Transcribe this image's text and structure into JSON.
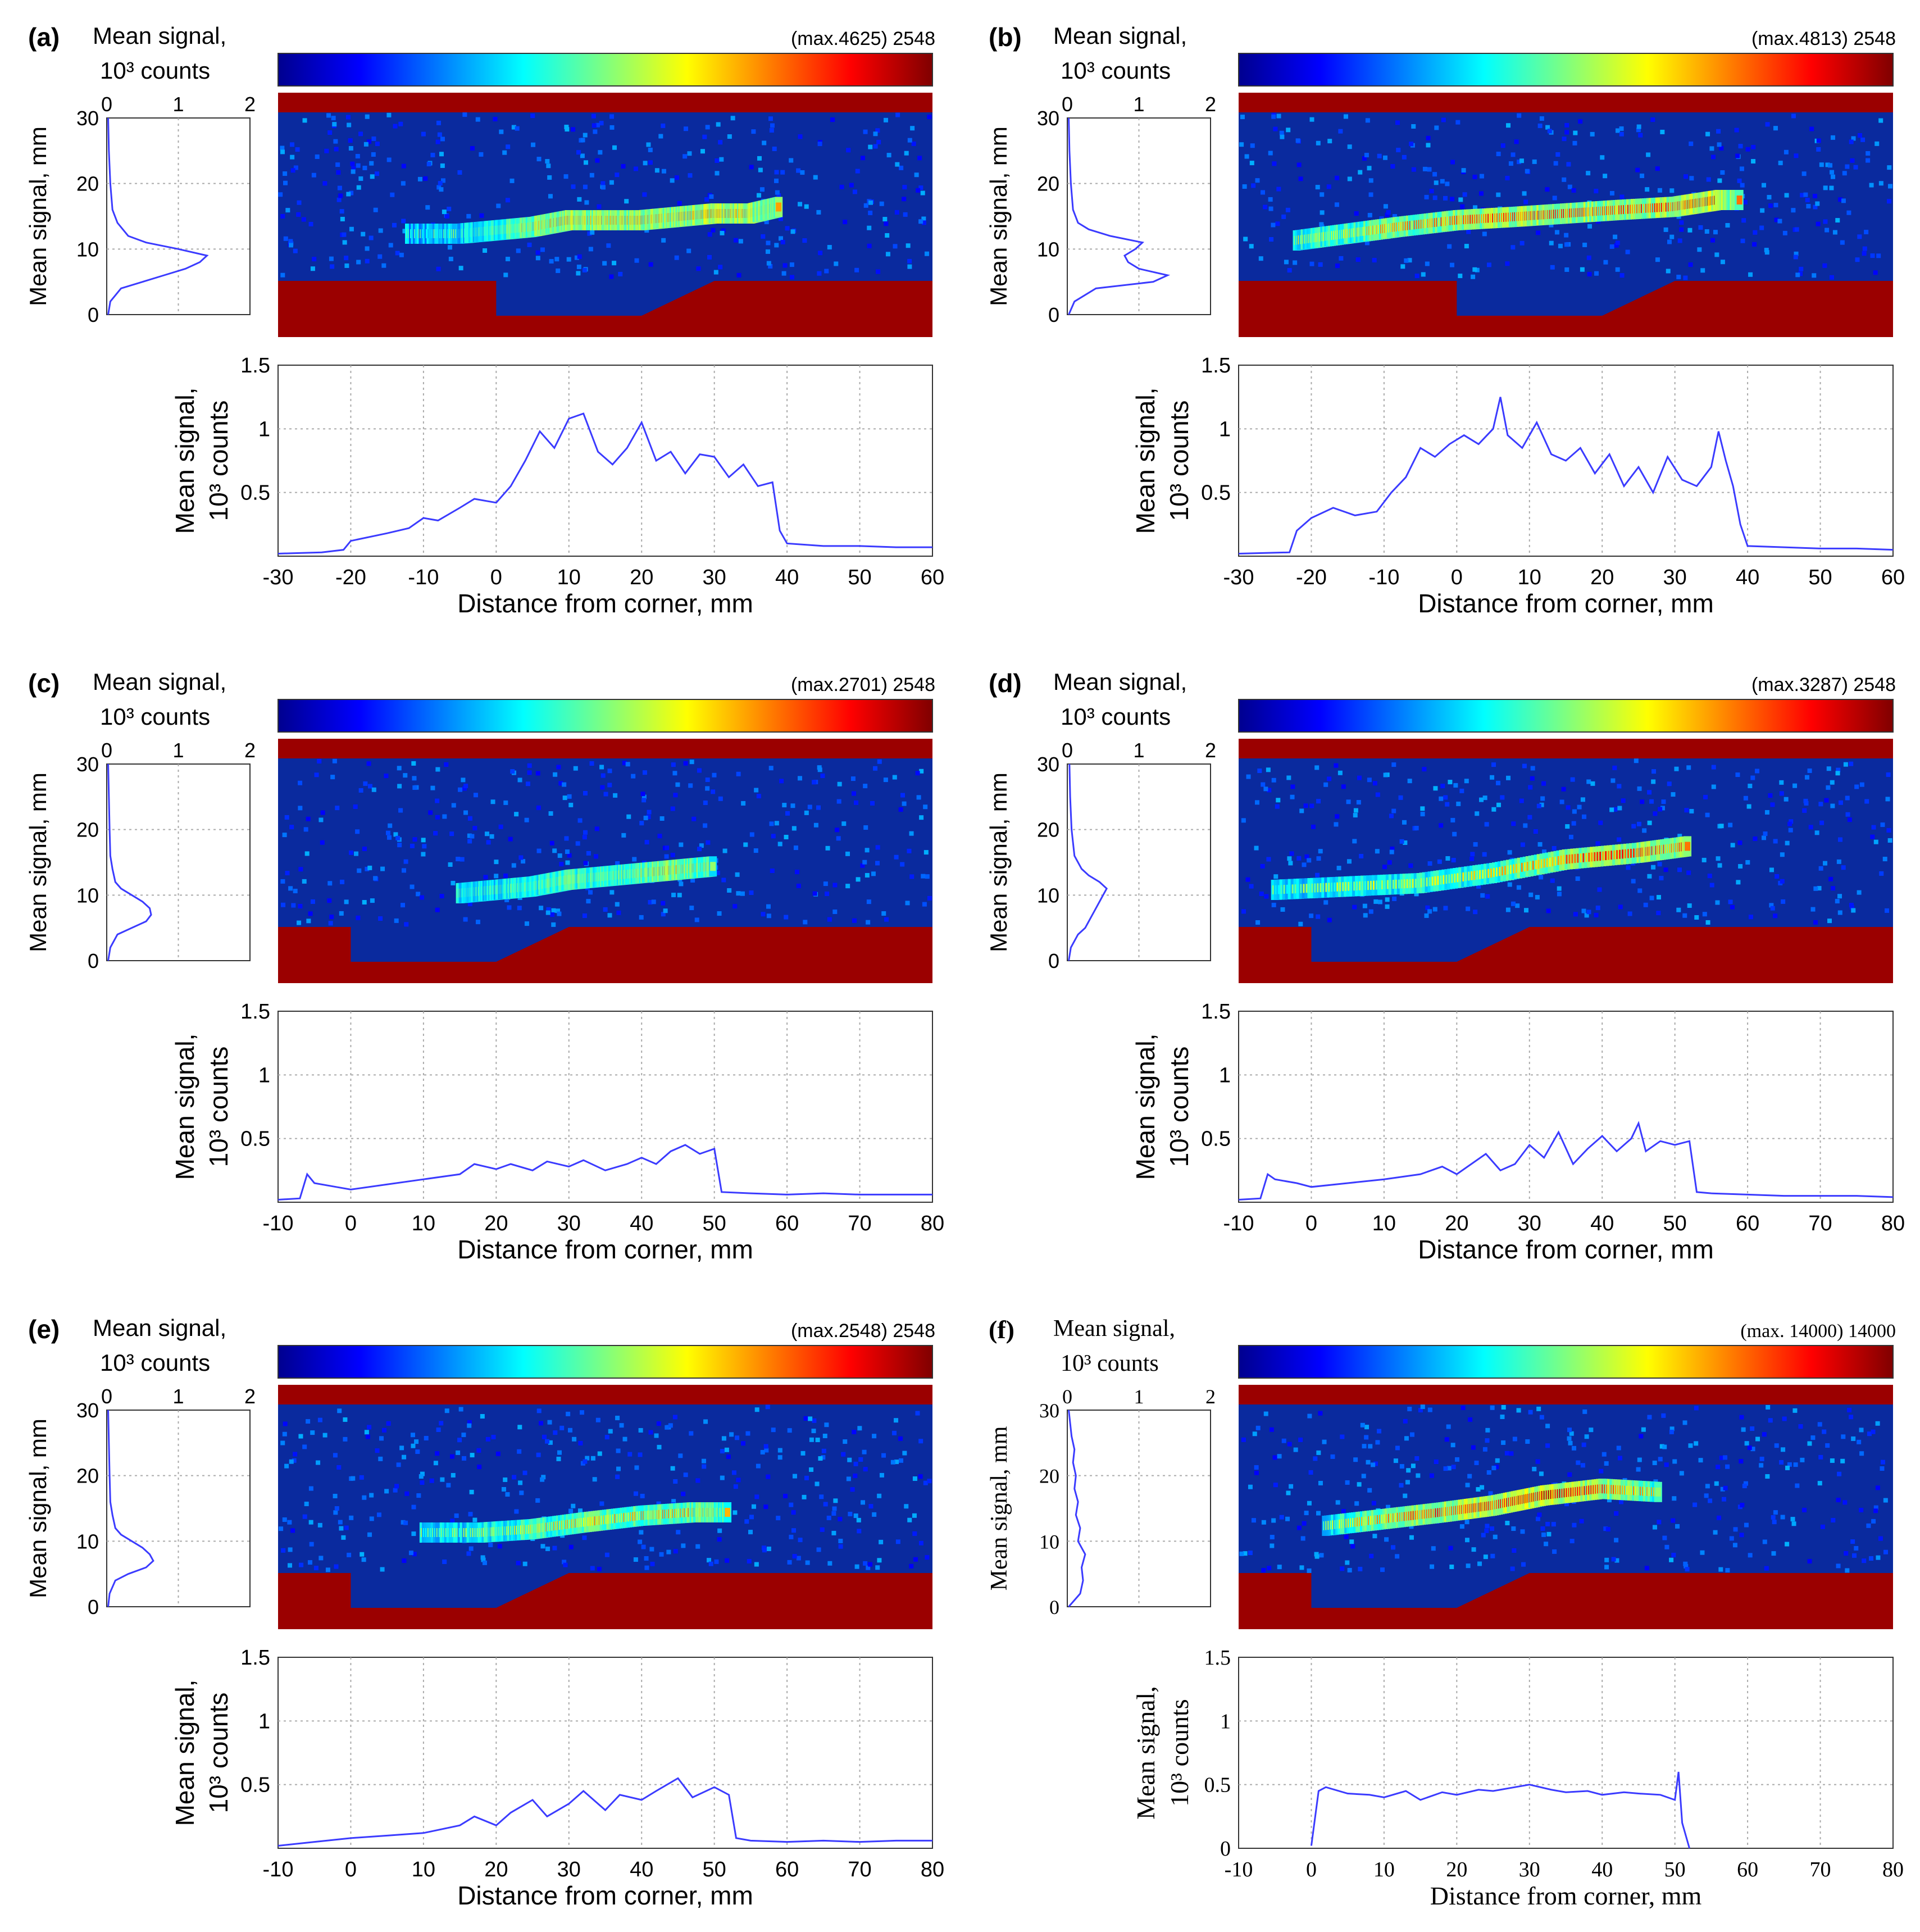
{
  "figure": {
    "colormap": [
      "#00008f",
      "#0000ff",
      "#007fff",
      "#00ffff",
      "#7fff7f",
      "#ffff00",
      "#ff7f00",
      "#ff0000",
      "#800000"
    ],
    "bottom_xlabel": "Distance from corner, mm",
    "bottom_ylabel_line1": "Mean signal,",
    "bottom_ylabel_line2": "10³ counts",
    "side_ylabel": "Mean signal, mm",
    "colorbar_label_line1": "Mean signal,",
    "colorbar_label_line2": "10³ counts",
    "wall_color": "#9b0000",
    "field_color": "#0a2a9e",
    "line_color": "#3b3bff"
  },
  "chart_data": [
    {
      "type": "line",
      "panel": "(a)",
      "colorbar_text": "(max.4625)  2548",
      "xlim": [
        -30,
        60
      ],
      "xticks": [
        "-30",
        "-20",
        "-10",
        "0",
        "10",
        "20",
        "30",
        "40",
        "50",
        "60"
      ],
      "ylim": [
        0,
        1.5
      ],
      "yticks": [
        "0.5",
        "1",
        "1.5"
      ],
      "x": [
        -30,
        -24,
        -21,
        -20,
        -15,
        -12,
        -10,
        -8,
        -5,
        -3,
        0,
        2,
        4,
        6,
        8,
        10,
        12,
        14,
        16,
        18,
        20,
        22,
        24,
        26,
        28,
        30,
        32,
        34,
        36,
        38,
        39,
        40,
        45,
        50,
        55,
        60
      ],
      "y": [
        0.02,
        0.03,
        0.05,
        0.12,
        0.18,
        0.22,
        0.3,
        0.28,
        0.38,
        0.45,
        0.42,
        0.55,
        0.75,
        0.98,
        0.85,
        1.08,
        1.12,
        0.82,
        0.72,
        0.85,
        1.05,
        0.75,
        0.82,
        0.65,
        0.8,
        0.78,
        0.62,
        0.72,
        0.55,
        0.58,
        0.2,
        0.1,
        0.08,
        0.08,
        0.07,
        0.07
      ],
      "side_profile": {
        "xlim": [
          0,
          2
        ],
        "xticks": [
          "0",
          "1",
          "2"
        ],
        "ylim": [
          0,
          30
        ],
        "yticks": [
          "0",
          "10",
          "20",
          "30"
        ],
        "y": [
          0,
          2,
          4,
          5,
          6,
          7,
          8,
          9,
          10,
          11,
          12,
          14,
          16,
          20,
          25,
          30
        ],
        "x": [
          0.02,
          0.05,
          0.2,
          0.5,
          0.8,
          1.1,
          1.3,
          1.4,
          1.0,
          0.55,
          0.3,
          0.15,
          0.08,
          0.05,
          0.03,
          0.02
        ]
      },
      "heatmap": {
        "streak_x": [
          -12,
          -5,
          0,
          5,
          10,
          15,
          20,
          25,
          30,
          35,
          39
        ],
        "streak_y": [
          7,
          7,
          7.5,
          8,
          9,
          9,
          9,
          9.5,
          10,
          10,
          11
        ],
        "intensity": [
          0.4,
          0.45,
          0.55,
          0.7,
          0.8,
          0.75,
          0.8,
          0.75,
          0.85,
          0.8,
          0.7
        ]
      }
    },
    {
      "type": "line",
      "panel": "(b)",
      "colorbar_text": "(max.4813)  2548",
      "xlim": [
        -30,
        60
      ],
      "xticks": [
        "-30",
        "-20",
        "-10",
        "0",
        "10",
        "20",
        "30",
        "40",
        "50",
        "60"
      ],
      "ylim": [
        0,
        1.5
      ],
      "yticks": [
        "0.5",
        "1",
        "1.5"
      ],
      "x": [
        -30,
        -23,
        -22,
        -20,
        -17,
        -14,
        -11,
        -9,
        -7,
        -5,
        -3,
        -1,
        1,
        3,
        5,
        6,
        7,
        9,
        11,
        13,
        15,
        17,
        19,
        21,
        23,
        25,
        27,
        29,
        31,
        33,
        35,
        36,
        37,
        38,
        39,
        40,
        45,
        50,
        55,
        60
      ],
      "y": [
        0.02,
        0.03,
        0.2,
        0.3,
        0.38,
        0.32,
        0.35,
        0.5,
        0.62,
        0.85,
        0.78,
        0.88,
        0.95,
        0.88,
        1.0,
        1.25,
        0.95,
        0.85,
        1.05,
        0.8,
        0.75,
        0.85,
        0.65,
        0.8,
        0.55,
        0.7,
        0.5,
        0.78,
        0.6,
        0.55,
        0.7,
        0.98,
        0.75,
        0.55,
        0.25,
        0.08,
        0.07,
        0.06,
        0.06,
        0.05
      ],
      "side_profile": {
        "xlim": [
          0,
          2
        ],
        "xticks": [
          "0",
          "1",
          "2"
        ],
        "ylim": [
          0,
          30
        ],
        "yticks": [
          "0",
          "10",
          "20",
          "30"
        ],
        "y": [
          0,
          2,
          4,
          5,
          6,
          7,
          8,
          9,
          10,
          11,
          12,
          13,
          14,
          16,
          20,
          25,
          30
        ],
        "x": [
          0.02,
          0.1,
          0.4,
          1.2,
          1.4,
          1.0,
          0.85,
          0.8,
          0.95,
          1.05,
          0.6,
          0.3,
          0.15,
          0.08,
          0.05,
          0.03,
          0.02
        ]
      },
      "heatmap": {
        "streak_x": [
          -22,
          -15,
          -8,
          0,
          8,
          15,
          22,
          30,
          36,
          39
        ],
        "streak_y": [
          6,
          7,
          8,
          9,
          9.5,
          10,
          10.5,
          11,
          12,
          12
        ],
        "intensity": [
          0.55,
          0.6,
          0.7,
          0.75,
          0.8,
          0.8,
          0.75,
          0.8,
          0.9,
          0.7
        ]
      }
    },
    {
      "type": "line",
      "panel": "(c)",
      "colorbar_text": "(max.2701)  2548",
      "xlim": [
        -10,
        80
      ],
      "xticks": [
        "-10",
        "0",
        "10",
        "20",
        "30",
        "40",
        "50",
        "60",
        "70",
        "80"
      ],
      "ylim": [
        0,
        1.5
      ],
      "yticks": [
        "0.5",
        "1",
        "1.5"
      ],
      "x": [
        -10,
        -7,
        -6,
        -5,
        -2,
        0,
        5,
        10,
        15,
        17,
        20,
        22,
        25,
        27,
        30,
        32,
        35,
        38,
        40,
        42,
        44,
        46,
        48,
        50,
        51,
        55,
        60,
        65,
        70,
        75,
        80
      ],
      "y": [
        0.02,
        0.03,
        0.22,
        0.15,
        0.12,
        0.1,
        0.14,
        0.18,
        0.22,
        0.3,
        0.26,
        0.3,
        0.25,
        0.32,
        0.28,
        0.33,
        0.25,
        0.3,
        0.35,
        0.3,
        0.4,
        0.45,
        0.38,
        0.42,
        0.08,
        0.07,
        0.06,
        0.07,
        0.06,
        0.06,
        0.06
      ],
      "side_profile": {
        "xlim": [
          0,
          2
        ],
        "xticks": [
          "0",
          "1",
          "2"
        ],
        "ylim": [
          0,
          30
        ],
        "yticks": [
          "0",
          "10",
          "20",
          "30"
        ],
        "y": [
          0,
          2,
          4,
          5,
          6,
          7,
          8,
          9,
          10,
          11,
          12,
          14,
          16,
          20,
          25,
          30
        ],
        "x": [
          0.02,
          0.05,
          0.15,
          0.35,
          0.55,
          0.62,
          0.6,
          0.5,
          0.35,
          0.2,
          0.12,
          0.08,
          0.05,
          0.04,
          0.03,
          0.02
        ]
      },
      "heatmap": {
        "streak_x": [
          15,
          20,
          25,
          30,
          35,
          40,
          45,
          50
        ],
        "streak_y": [
          5,
          5.5,
          6,
          7,
          7.5,
          8,
          8.5,
          9
        ],
        "intensity": [
          0.5,
          0.5,
          0.55,
          0.6,
          0.6,
          0.65,
          0.75,
          0.6
        ]
      }
    },
    {
      "type": "line",
      "panel": "(d)",
      "colorbar_text": "(max.3287)  2548",
      "xlim": [
        -10,
        80
      ],
      "xticks": [
        "-10",
        "0",
        "10",
        "20",
        "30",
        "40",
        "50",
        "60",
        "70",
        "80"
      ],
      "ylim": [
        0,
        1.5
      ],
      "yticks": [
        "0.5",
        "1",
        "1.5"
      ],
      "x": [
        -10,
        -7,
        -6,
        -5,
        -2,
        0,
        5,
        10,
        15,
        18,
        20,
        24,
        26,
        28,
        30,
        32,
        34,
        36,
        38,
        40,
        42,
        44,
        45,
        46,
        48,
        50,
        52,
        53,
        55,
        60,
        65,
        70,
        75,
        80
      ],
      "y": [
        0.02,
        0.03,
        0.22,
        0.18,
        0.15,
        0.12,
        0.15,
        0.18,
        0.22,
        0.28,
        0.22,
        0.38,
        0.25,
        0.3,
        0.45,
        0.35,
        0.55,
        0.3,
        0.42,
        0.52,
        0.4,
        0.5,
        0.62,
        0.4,
        0.48,
        0.45,
        0.48,
        0.08,
        0.07,
        0.06,
        0.05,
        0.05,
        0.05,
        0.04
      ],
      "side_profile": {
        "xlim": [
          0,
          2
        ],
        "xticks": [
          "0",
          "1",
          "2"
        ],
        "ylim": [
          0,
          30
        ],
        "yticks": [
          "0",
          "10",
          "20",
          "30"
        ],
        "y": [
          0,
          2,
          4,
          5,
          6,
          7,
          8,
          9,
          10,
          11,
          12,
          13,
          14,
          16,
          20,
          25,
          30
        ],
        "x": [
          0.02,
          0.05,
          0.15,
          0.25,
          0.3,
          0.35,
          0.4,
          0.45,
          0.5,
          0.55,
          0.45,
          0.3,
          0.2,
          0.1,
          0.06,
          0.04,
          0.03
        ]
      },
      "heatmap": {
        "streak_x": [
          -5,
          5,
          15,
          25,
          35,
          45,
          52
        ],
        "streak_y": [
          5.5,
          6,
          6.5,
          8,
          10,
          11,
          12
        ],
        "intensity": [
          0.45,
          0.5,
          0.55,
          0.6,
          0.75,
          0.8,
          0.75
        ]
      }
    },
    {
      "type": "line",
      "panel": "(e)",
      "colorbar_text": "(max.2548)   2548",
      "xlim": [
        -10,
        80
      ],
      "xticks": [
        "-10",
        "0",
        "10",
        "20",
        "30",
        "40",
        "50",
        "60",
        "70",
        "80"
      ],
      "ylim": [
        0,
        1.5
      ],
      "yticks": [
        "0.5",
        "1",
        "1.5"
      ],
      "x": [
        -10,
        -5,
        0,
        5,
        10,
        15,
        17,
        20,
        22,
        25,
        27,
        30,
        32,
        35,
        37,
        40,
        42,
        45,
        47,
        50,
        52,
        53,
        55,
        60,
        65,
        70,
        75,
        80
      ],
      "y": [
        0.02,
        0.05,
        0.08,
        0.1,
        0.12,
        0.18,
        0.25,
        0.18,
        0.28,
        0.38,
        0.25,
        0.35,
        0.45,
        0.3,
        0.42,
        0.38,
        0.45,
        0.55,
        0.4,
        0.48,
        0.42,
        0.08,
        0.06,
        0.05,
        0.06,
        0.05,
        0.06,
        0.06
      ],
      "side_profile": {
        "xlim": [
          0,
          2
        ],
        "xticks": [
          "0",
          "1",
          "2"
        ],
        "ylim": [
          0,
          30
        ],
        "yticks": [
          "0",
          "10",
          "20",
          "30"
        ],
        "y": [
          0,
          2,
          4,
          5,
          6,
          7,
          8,
          9,
          10,
          11,
          12,
          14,
          16,
          20,
          25,
          30
        ],
        "x": [
          0.02,
          0.04,
          0.12,
          0.3,
          0.55,
          0.65,
          0.6,
          0.5,
          0.35,
          0.2,
          0.12,
          0.08,
          0.05,
          0.04,
          0.03,
          0.02
        ]
      },
      "heatmap": {
        "streak_x": [
          10,
          18,
          25,
          32,
          40,
          47,
          52
        ],
        "streak_y": [
          6,
          6,
          6.5,
          7.5,
          8.5,
          9,
          9
        ],
        "intensity": [
          0.45,
          0.5,
          0.6,
          0.65,
          0.65,
          0.7,
          0.6
        ]
      }
    },
    {
      "type": "line",
      "panel": "(f)",
      "colorbar_text": "(max. 14000) 14000",
      "xlim": [
        -10,
        80
      ],
      "xticks": [
        "-10",
        "0",
        "10",
        "20",
        "30",
        "40",
        "50",
        "60",
        "70",
        "80"
      ],
      "ylim": [
        0,
        1.5
      ],
      "yticks": [
        "0",
        "0.5",
        "1",
        "1.5"
      ],
      "x": [
        0,
        1,
        2,
        5,
        8,
        10,
        13,
        15,
        18,
        20,
        23,
        25,
        28,
        30,
        33,
        35,
        38,
        40,
        43,
        45,
        48,
        50,
        50.5,
        51,
        52
      ],
      "y": [
        0.02,
        0.45,
        0.48,
        0.43,
        0.42,
        0.4,
        0.45,
        0.38,
        0.44,
        0.42,
        0.46,
        0.45,
        0.48,
        0.5,
        0.46,
        0.44,
        0.45,
        0.42,
        0.44,
        0.43,
        0.42,
        0.38,
        0.6,
        0.2,
        0.0
      ],
      "side_profile": {
        "xlim": [
          0,
          2
        ],
        "xticks": [
          "0",
          "1",
          "2"
        ],
        "ylim": [
          0,
          30
        ],
        "yticks": [
          "0",
          "10",
          "20",
          "30"
        ],
        "y": [
          0,
          2,
          4,
          6,
          8,
          10,
          12,
          14,
          16,
          18,
          20,
          22,
          24,
          26,
          28,
          30
        ],
        "x": [
          0.02,
          0.18,
          0.22,
          0.2,
          0.25,
          0.15,
          0.18,
          0.12,
          0.15,
          0.1,
          0.12,
          0.08,
          0.1,
          0.06,
          0.04,
          0.02
        ]
      },
      "heatmap": {
        "streak_x": [
          2,
          10,
          18,
          25,
          32,
          40,
          48
        ],
        "streak_y": [
          7,
          8,
          9,
          10,
          11.5,
          12.5,
          12
        ],
        "intensity": [
          0.5,
          0.7,
          0.8,
          0.85,
          0.9,
          0.8,
          0.6
        ]
      }
    }
  ]
}
